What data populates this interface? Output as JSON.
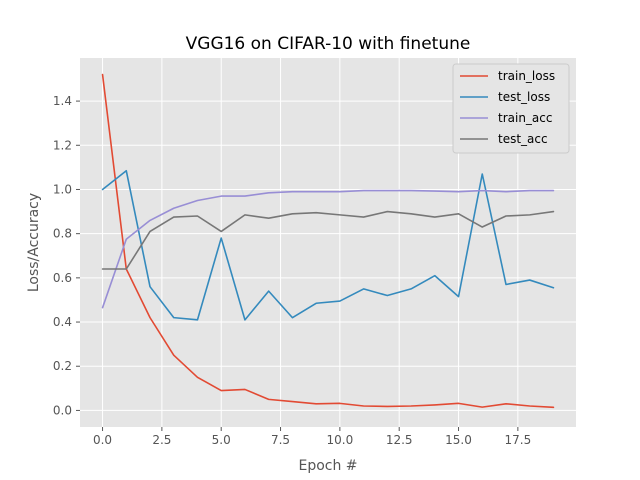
{
  "chart_data": {
    "type": "line",
    "title": "VGG16 on CIFAR-10 with finetune",
    "xlabel": "Epoch #",
    "ylabel": "Loss/Accuracy",
    "xlim": [
      -0.95,
      19.95
    ],
    "ylim": [
      -0.075,
      1.595
    ],
    "xticks": [
      0.0,
      2.5,
      5.0,
      7.5,
      10.0,
      12.5,
      15.0,
      17.5
    ],
    "xtick_labels": [
      "0.0",
      "2.5",
      "5.0",
      "7.5",
      "10.0",
      "12.5",
      "15.0",
      "17.5"
    ],
    "yticks": [
      0.0,
      0.2,
      0.4,
      0.6,
      0.8,
      1.0,
      1.2,
      1.4
    ],
    "ytick_labels": [
      "0.0",
      "0.2",
      "0.4",
      "0.6",
      "0.8",
      "1.0",
      "1.2",
      "1.4"
    ],
    "grid": true,
    "style": "ggplot",
    "legend_position": "upper right",
    "x": [
      0,
      1,
      2,
      3,
      4,
      5,
      6,
      7,
      8,
      9,
      10,
      11,
      12,
      13,
      14,
      15,
      16,
      17,
      18,
      19
    ],
    "series": [
      {
        "name": "train_loss",
        "color": "#e24a33",
        "values": [
          1.52,
          0.64,
          0.42,
          0.25,
          0.15,
          0.09,
          0.095,
          0.05,
          0.04,
          0.03,
          0.032,
          0.02,
          0.018,
          0.02,
          0.025,
          0.032,
          0.015,
          0.03,
          0.02,
          0.014
        ]
      },
      {
        "name": "test_loss",
        "color": "#348abd",
        "values": [
          1.0,
          1.085,
          0.56,
          0.42,
          0.41,
          0.78,
          0.41,
          0.54,
          0.42,
          0.485,
          0.495,
          0.55,
          0.52,
          0.55,
          0.61,
          0.515,
          1.07,
          0.57,
          0.59,
          0.555
        ]
      },
      {
        "name": "train_acc",
        "color": "#988ed5",
        "values": [
          0.465,
          0.775,
          0.86,
          0.915,
          0.95,
          0.97,
          0.97,
          0.985,
          0.99,
          0.99,
          0.99,
          0.995,
          0.995,
          0.995,
          0.993,
          0.99,
          0.995,
          0.99,
          0.995,
          0.995
        ]
      },
      {
        "name": "test_acc",
        "color": "#777777",
        "values": [
          0.64,
          0.64,
          0.81,
          0.875,
          0.88,
          0.81,
          0.885,
          0.87,
          0.89,
          0.895,
          0.885,
          0.875,
          0.9,
          0.89,
          0.875,
          0.89,
          0.83,
          0.88,
          0.885,
          0.9
        ]
      }
    ]
  }
}
